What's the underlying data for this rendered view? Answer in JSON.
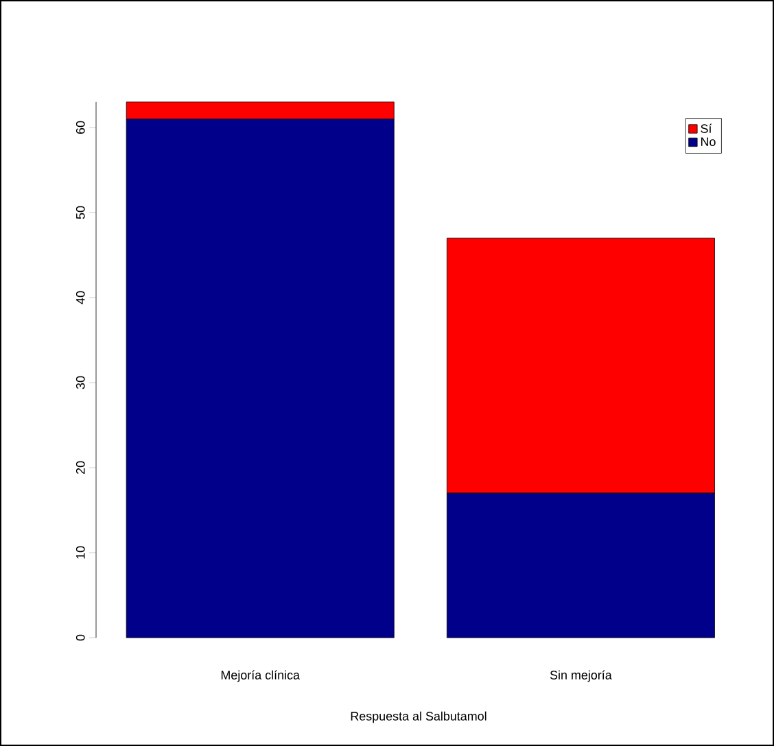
{
  "chart_data": {
    "type": "bar",
    "stacked": true,
    "xlabel": "Respuesta al Salbutamol",
    "categories": [
      "Mejoría clínica",
      "Sin mejoría"
    ],
    "series": [
      {
        "name": "No",
        "color": "#00008b",
        "values": [
          61,
          17
        ]
      },
      {
        "name": "Sí",
        "color": "#ff0000",
        "values": [
          2,
          30
        ]
      }
    ],
    "ylim": [
      0,
      63
    ],
    "yticks": [
      0,
      10,
      20,
      30,
      40,
      50,
      60
    ],
    "legend": "top right"
  }
}
